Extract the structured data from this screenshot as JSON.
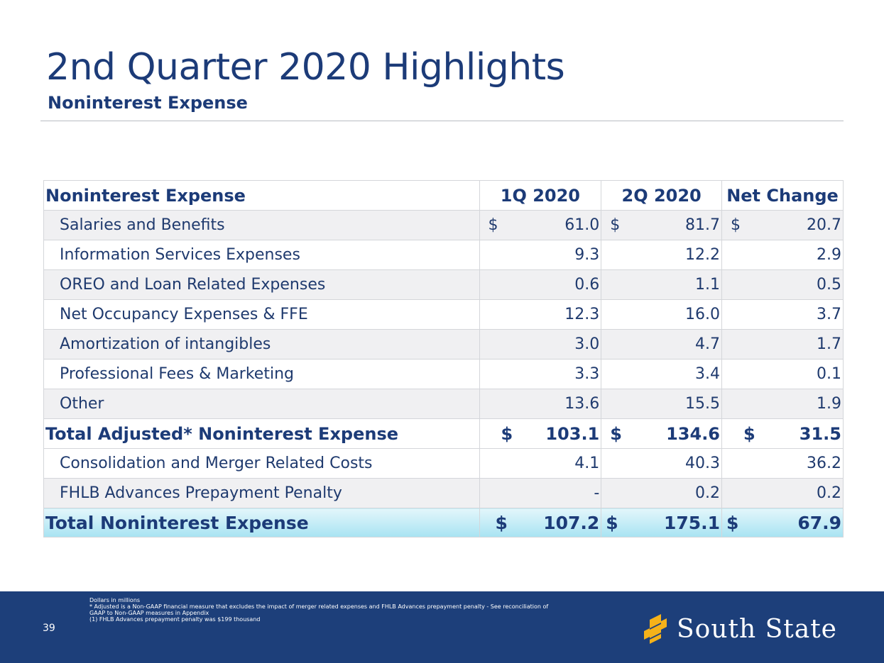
{
  "header": {
    "title": "2nd Quarter 2020 Highlights",
    "subtitle": "Noninterest Expense"
  },
  "table": {
    "columns": [
      "Noninterest Expense",
      "1Q 2020",
      "2Q 2020",
      "Net Change"
    ],
    "rows": [
      {
        "label": "Salaries and Benefits",
        "q1": "61.0",
        "q2": "81.7",
        "net": "20.7",
        "dollar": "$"
      },
      {
        "label": "Information Services Expenses",
        "q1": "9.3",
        "q2": "12.2",
        "net": "2.9"
      },
      {
        "label": "OREO and Loan Related Expenses",
        "q1": "0.6",
        "q2": "1.1",
        "net": "0.5"
      },
      {
        "label": "Net Occupancy Expenses & FFE",
        "q1": "12.3",
        "q2": "16.0",
        "net": "3.7"
      },
      {
        "label": "Amortization of intangibles",
        "q1": "3.0",
        "q2": "4.7",
        "net": "1.7"
      },
      {
        "label": "Professional Fees & Marketing",
        "q1": "3.3",
        "q2": "3.4",
        "net": "0.1"
      },
      {
        "label": "Other",
        "q1": "13.6",
        "q2": "15.5",
        "net": "1.9"
      },
      {
        "label": "Total Adjusted* Noninterest Expense",
        "q1": "103.1",
        "q2": "134.6",
        "net": "31.5",
        "dollar": "$"
      },
      {
        "label": "Consolidation and Merger Related Costs",
        "q1": "4.1",
        "q2": "40.3",
        "net": "36.2"
      },
      {
        "label": "FHLB Advances Prepayment Penalty",
        "q1": "-",
        "q2": "0.2",
        "net": "0.2"
      },
      {
        "label": "Total Noninterest Expense",
        "q1": "107.2",
        "q2": "175.1",
        "net": "67.9",
        "dollar": "$"
      }
    ]
  },
  "footer": {
    "page_number": "39",
    "notes": [
      "Dollars in millions",
      "* Adjusted is a Non-GAAP financial measure that excludes the impact of merger related expenses and FHLB Advances prepayment penalty - See reconciliation of",
      "GAAP to Non-GAAP measures in Appendix",
      "(1) FHLB Advances prepayment penalty was $199 thousand"
    ],
    "logo_text": "South State",
    "colors": {
      "footer_bg": "#1d3f7a",
      "logo_mark": "#f5b21a",
      "total_row": "#a8e3f2"
    }
  }
}
